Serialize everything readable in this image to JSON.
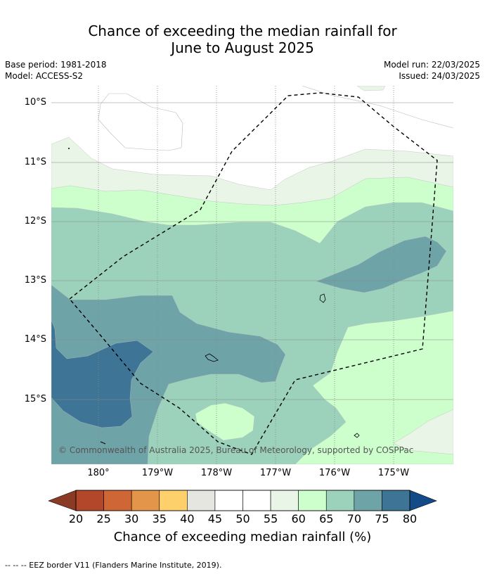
{
  "header": {
    "title_line1": "Chance of exceeding the median rainfall for",
    "title_line2": "June to August 2025",
    "base_period": "Base period: 1981-2018",
    "model": "Model: ACCESS-S2",
    "model_run": "Model run: 22/03/2025",
    "issued": "Issued: 24/03/2025"
  },
  "map": {
    "lat_labels": [
      "10°S",
      "11°S",
      "12°S",
      "13°S",
      "14°S",
      "15°S"
    ],
    "lon_labels": [
      "180°",
      "179°W",
      "178°W",
      "177°W",
      "176°W",
      "175°W"
    ],
    "copyright": "© Commonwealth of Australia 2025, Bureau of Meteorology, supported by COSPPac",
    "colors": {
      "50_55": "#ffffff",
      "55_60": "#e9f5e6",
      "60_65": "#ccffcc",
      "65_70": "#9cd2bc",
      "70_75": "#6ea3a8",
      "75_80": "#3e7496",
      "eez": "#000000",
      "grid": "#888888"
    }
  },
  "colorbar": {
    "ticks": [
      "20",
      "25",
      "30",
      "35",
      "40",
      "45",
      "50",
      "55",
      "60",
      "65",
      "70",
      "75",
      "80"
    ],
    "colors": [
      "#8b3a25",
      "#b3472a",
      "#cf6636",
      "#e3954a",
      "#fdd06c",
      "#e6e6e1",
      "#ffffff",
      "#ffffff",
      "#e9f5e6",
      "#ccffcc",
      "#9cd2bc",
      "#6ea3a8",
      "#3e7496",
      "#124b87"
    ],
    "title": "Chance of exceeding median rainfall (%)"
  },
  "footnote": "--  --  -- EEZ border V11 (Flanders Marine Institute, 2019)."
}
